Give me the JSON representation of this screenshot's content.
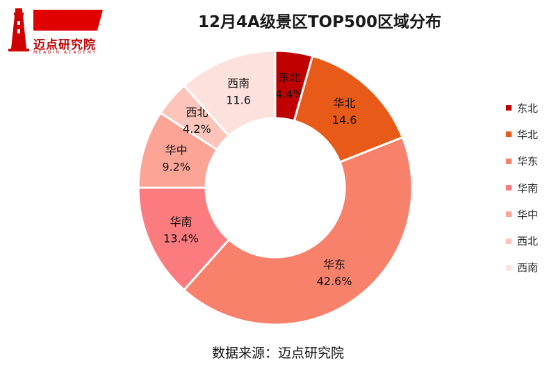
{
  "logo": {
    "name": "迈点研究院",
    "subtitle": "MEADIN ACADEMY"
  },
  "title": "12月4A级景区TOP500区域分布",
  "source": "数据来源：迈点研究院",
  "chart_data": {
    "type": "pie",
    "donut": true,
    "title": "12月4A级景区TOP500区域分布",
    "legend_position": "right",
    "slices": [
      {
        "name": "东北",
        "value": 4.4,
        "label": "4.4%",
        "color": "#C00000"
      },
      {
        "name": "华北",
        "value": 14.6,
        "label": "14.6",
        "color": "#E85A18"
      },
      {
        "name": "华东",
        "value": 42.6,
        "label": "42.6%",
        "color": "#F8816C"
      },
      {
        "name": "华南",
        "value": 13.4,
        "label": "13.4%",
        "color": "#FC7B7E"
      },
      {
        "name": "华中",
        "value": 9.2,
        "label": "9.2%",
        "color": "#FCA496"
      },
      {
        "name": "西北",
        "value": 4.2,
        "label": "4.2%",
        "color": "#FCC4BA"
      },
      {
        "name": "西南",
        "value": 11.6,
        "label": "11.6",
        "color": "#FCE1DC"
      }
    ]
  }
}
